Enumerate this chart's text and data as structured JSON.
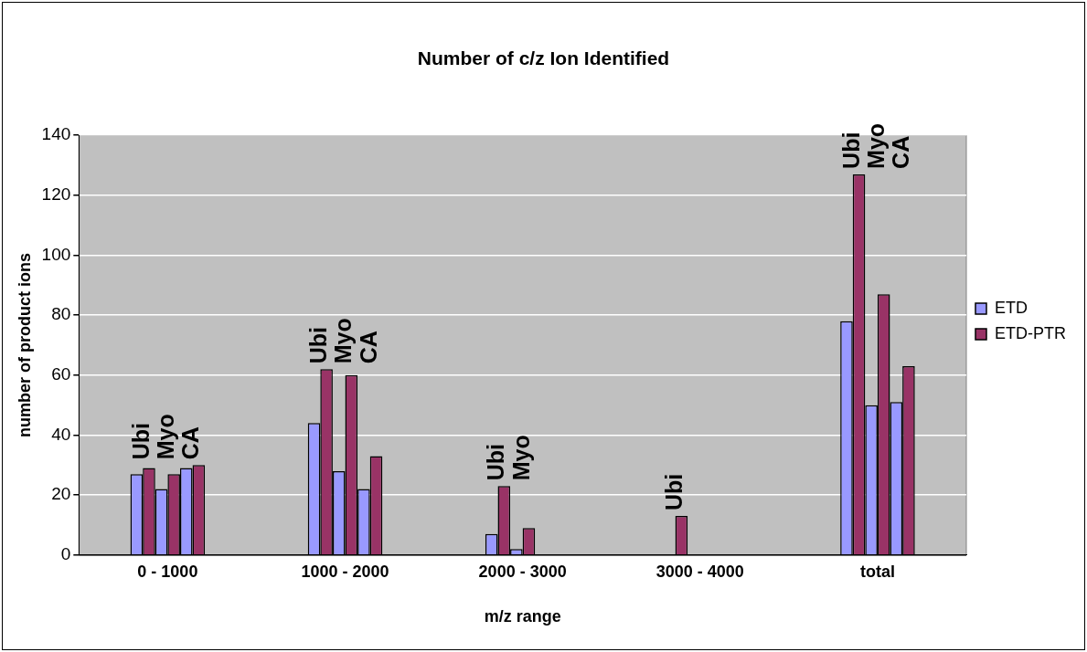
{
  "chart_data": {
    "type": "bar",
    "title": "Number of c/z Ion Identified",
    "xlabel": "m/z range",
    "ylabel": "number of product ions",
    "categories": [
      "0 - 1000",
      "1000 - 2000",
      "2000 - 3000",
      "3000 - 4000",
      "total"
    ],
    "series": [
      {
        "name": "ETD",
        "color": "#9999ff",
        "values": [
          27,
          44,
          7,
          null,
          78
        ]
      },
      {
        "name": "ETD-PTR",
        "color": "#993366",
        "values": [
          29,
          62,
          23,
          13,
          127
        ]
      },
      {
        "color": "#9999ff",
        "values": [
          22,
          28,
          2,
          null,
          50
        ]
      },
      {
        "color": "#993366",
        "values": [
          27,
          60,
          9,
          null,
          87
        ]
      },
      {
        "color": "#9999ff",
        "values": [
          29,
          22,
          null,
          null,
          51
        ]
      },
      {
        "color": "#993366",
        "values": [
          30,
          33,
          null,
          null,
          63
        ]
      }
    ],
    "ylim": [
      0,
      140
    ],
    "yticks": [
      0,
      20,
      40,
      60,
      80,
      100,
      120,
      140
    ],
    "grid": "y",
    "legend": "right",
    "annotations": [
      "Ubi",
      "Myo",
      "CA",
      "Ubi",
      "Myo",
      "CA",
      "Ubi",
      "Myo",
      "Ubi",
      "Ubi",
      "Myo",
      "CA"
    ]
  }
}
